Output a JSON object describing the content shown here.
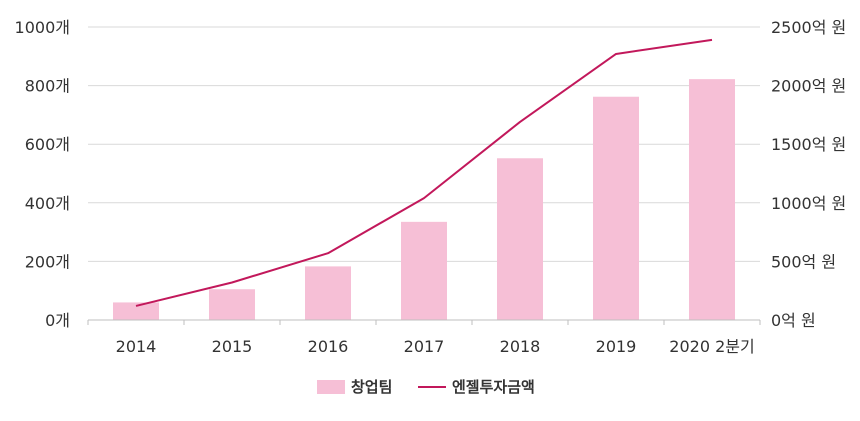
{
  "chart_data": {
    "type": "bar",
    "categories": [
      "2014",
      "2015",
      "2016",
      "2017",
      "2018",
      "2019",
      "2020 2분기"
    ],
    "series": [
      {
        "name": "창업팀",
        "type": "bar",
        "axis": "left",
        "color": "#f6bfd6",
        "values": [
          60,
          105,
          183,
          335,
          552,
          762,
          822
        ]
      },
      {
        "name": "엔젤투자금액",
        "type": "line",
        "axis": "right",
        "color": "#c2185b",
        "values": [
          120,
          320,
          570,
          1040,
          1690,
          2270,
          2390
        ]
      }
    ],
    "y_left": {
      "ylim": [
        0,
        1000
      ],
      "ticks": [
        0,
        200,
        400,
        600,
        800,
        1000
      ],
      "tick_labels": [
        "0개",
        "200개",
        "400개",
        "600개",
        "800개",
        "1000개"
      ]
    },
    "y_right": {
      "ylim": [
        0,
        2500
      ],
      "ticks": [
        0,
        500,
        1000,
        1500,
        2000,
        2500
      ],
      "tick_labels": [
        "0억 원",
        "500억 원",
        "1000억 원",
        "1500억 원",
        "2000억 원",
        "2500억 원"
      ]
    },
    "grid": "horizontal",
    "legend_position": "bottom-center"
  }
}
